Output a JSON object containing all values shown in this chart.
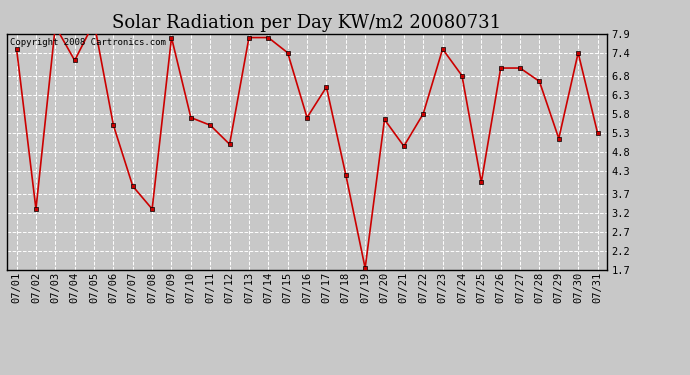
{
  "title": "Solar Radiation per Day KW/m2 20080731",
  "copyright": "Copyright 2008 Cartronics.com",
  "dates": [
    "07/01",
    "07/02",
    "07/03",
    "07/04",
    "07/05",
    "07/06",
    "07/07",
    "07/08",
    "07/09",
    "07/10",
    "07/11",
    "07/12",
    "07/13",
    "07/14",
    "07/15",
    "07/16",
    "07/17",
    "07/18",
    "07/19",
    "07/20",
    "07/21",
    "07/22",
    "07/23",
    "07/24",
    "07/25",
    "07/26",
    "07/27",
    "07/28",
    "07/29",
    "07/30",
    "07/31"
  ],
  "values": [
    7.5,
    3.3,
    8.1,
    7.2,
    8.2,
    5.5,
    3.9,
    3.3,
    7.8,
    5.7,
    5.5,
    5.0,
    7.8,
    7.8,
    7.4,
    5.7,
    6.5,
    4.2,
    1.75,
    5.65,
    4.95,
    5.8,
    7.5,
    6.8,
    4.0,
    7.0,
    7.0,
    6.65,
    5.15,
    7.4,
    5.3
  ],
  "ylim": [
    1.7,
    7.9
  ],
  "yticks": [
    1.7,
    2.2,
    2.7,
    3.2,
    3.7,
    4.3,
    4.8,
    5.3,
    5.8,
    6.3,
    6.8,
    7.4,
    7.9
  ],
  "line_color": "#cc0000",
  "marker_color": "#000000",
  "bg_color": "#c8c8c8",
  "grid_color": "#ffffff",
  "title_fontsize": 13,
  "tick_fontsize": 7.5,
  "copyright_fontsize": 6.5
}
